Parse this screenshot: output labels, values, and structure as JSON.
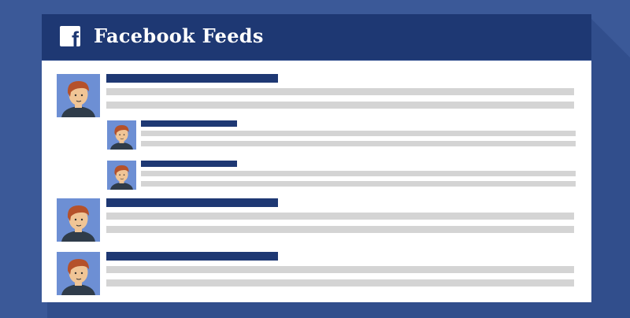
{
  "colors": {
    "background": "#3b5998",
    "header": "#1e3873",
    "card": "#ffffff",
    "name_bar": "#1e3873",
    "text_bar": "#d4d4d4",
    "avatar_bg": "#6d8fd4",
    "hair": "#b5512a",
    "skin": "#f0c596",
    "shirt": "#2f3c4a"
  },
  "header": {
    "logo_letter": "f",
    "logo_icon": "facebook-logo-icon",
    "title": "Facebook Feeds"
  }
}
